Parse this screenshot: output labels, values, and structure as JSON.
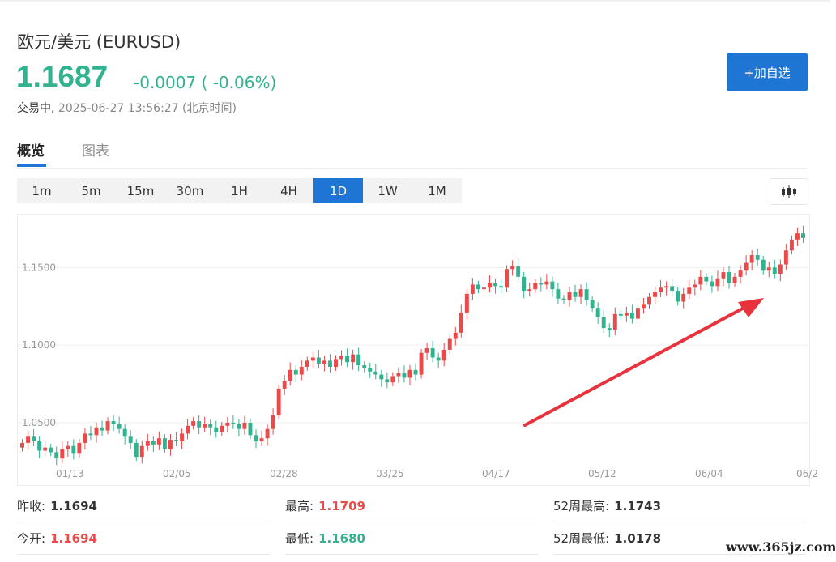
{
  "header": {
    "title": "欧元/美元 (EURUSD)",
    "price": "1.1687",
    "change": "-0.0007 ( -0.06%)",
    "status_label": "交易中,",
    "status_time": "2025-06-27 13:56:27 (北京时间)",
    "add_watchlist_label": "+加自选"
  },
  "tabs": [
    {
      "label": "概览",
      "active": true
    },
    {
      "label": "图表",
      "active": false
    }
  ],
  "periods": [
    {
      "label": "1m"
    },
    {
      "label": "5m"
    },
    {
      "label": "15m"
    },
    {
      "label": "30m"
    },
    {
      "label": "1H"
    },
    {
      "label": "4H"
    },
    {
      "label": "1D",
      "active": true
    },
    {
      "label": "1W"
    },
    {
      "label": "1M"
    }
  ],
  "chart_type_icon": "candlestick-icon",
  "colors": {
    "up": "#ea4a4a",
    "down": "#31b38f",
    "accent": "#1f75d3",
    "arrow": "#e8323c"
  },
  "chart_data": {
    "type": "candlestick",
    "y_ticks": [
      "1.1500",
      "1.1000",
      "1.0500"
    ],
    "y_tick_values": [
      1.15,
      1.1,
      1.05
    ],
    "ylim": [
      1.026,
      1.182
    ],
    "x_ticks": [
      "01/13",
      "02/05",
      "02/28",
      "03/25",
      "04/17",
      "05/12",
      "06/04",
      "06/2"
    ],
    "grid": true,
    "annotation": "red arrow pointing up-right",
    "closes": [
      1.037,
      1.041,
      1.038,
      1.032,
      1.034,
      1.031,
      1.027,
      1.033,
      1.035,
      1.03,
      1.037,
      1.043,
      1.042,
      1.047,
      1.045,
      1.051,
      1.049,
      1.046,
      1.041,
      1.037,
      1.028,
      1.035,
      1.038,
      1.036,
      1.04,
      1.033,
      1.039,
      1.038,
      1.043,
      1.048,
      1.051,
      1.047,
      1.049,
      1.047,
      1.044,
      1.048,
      1.05,
      1.049,
      1.046,
      1.05,
      1.042,
      1.038,
      1.04,
      1.046,
      1.055,
      1.072,
      1.077,
      1.084,
      1.081,
      1.086,
      1.09,
      1.092,
      1.088,
      1.09,
      1.086,
      1.091,
      1.093,
      1.089,
      1.094,
      1.087,
      1.085,
      1.083,
      1.081,
      1.078,
      1.076,
      1.08,
      1.082,
      1.079,
      1.084,
      1.081,
      1.095,
      1.098,
      1.092,
      1.09,
      1.097,
      1.104,
      1.108,
      1.121,
      1.133,
      1.139,
      1.136,
      1.137,
      1.14,
      1.138,
      1.137,
      1.149,
      1.151,
      1.144,
      1.135,
      1.136,
      1.14,
      1.139,
      1.141,
      1.136,
      1.13,
      1.129,
      1.134,
      1.131,
      1.136,
      1.129,
      1.124,
      1.118,
      1.111,
      1.11,
      1.12,
      1.119,
      1.121,
      1.117,
      1.124,
      1.126,
      1.131,
      1.134,
      1.137,
      1.138,
      1.135,
      1.128,
      1.133,
      1.137,
      1.139,
      1.144,
      1.141,
      1.138,
      1.143,
      1.147,
      1.14,
      1.144,
      1.148,
      1.153,
      1.158,
      1.155,
      1.148,
      1.15,
      1.146,
      1.152,
      1.161,
      1.168,
      1.172,
      1.169
    ]
  },
  "stats": [
    {
      "label": "昨收:",
      "value": "1.1694",
      "color": "plain"
    },
    {
      "label": "最高:",
      "value": "1.1709",
      "color": "red"
    },
    {
      "label": "52周最高:",
      "value": "1.1743",
      "color": "plain"
    },
    {
      "label": "今开:",
      "value": "1.1694",
      "color": "red"
    },
    {
      "label": "最低:",
      "value": "1.1680",
      "color": "green"
    },
    {
      "label": "52周最低:",
      "value": "1.0178",
      "color": "plain"
    }
  ],
  "watermark": "www.365jz.com"
}
